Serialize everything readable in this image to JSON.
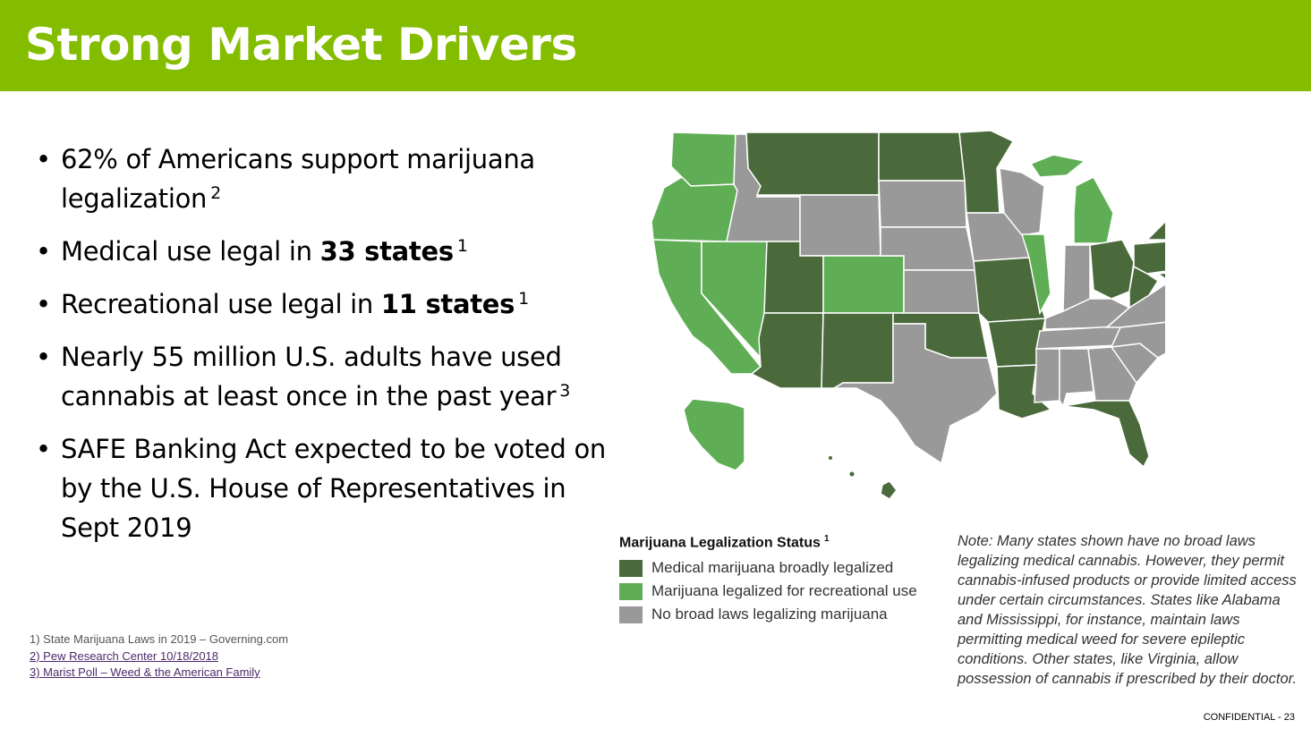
{
  "title": "Strong Market Drivers",
  "bullets": [
    {
      "text": "62% of Americans support marijuana legalization",
      "bold": "",
      "after": "",
      "sup": "2"
    },
    {
      "text": "Medical use legal in ",
      "bold": "33 states",
      "after": "",
      "sup": "1"
    },
    {
      "text": "Recreational use legal in ",
      "bold": "11 states",
      "after": "",
      "sup": "1"
    },
    {
      "text": "Nearly 55 million U.S. adults have used cannabis at least once in the past year",
      "bold": "",
      "after": "",
      "sup": "3"
    },
    {
      "text": "SAFE Banking Act expected to be voted on by the U.S. House of Representatives in Sept 2019",
      "bold": "",
      "after": "",
      "sup": ""
    }
  ],
  "references": [
    {
      "text": "1) State Marijuana Laws in 2019 – Governing.com",
      "link": false
    },
    {
      "text": "2) Pew Research Center 10/18/2018",
      "link": true
    },
    {
      "text": "3) Marist Poll – Weed & the American Family",
      "link": true
    }
  ],
  "legend": {
    "title": "Marijuana Legalization Status",
    "title_sup": "1",
    "items": [
      {
        "label": "Medical marijuana broadly legalized",
        "color": "#4a6a3c"
      },
      {
        "label": "Marijuana legalized for recreational use",
        "color": "#5fae55"
      },
      {
        "label": "No broad laws legalizing marijuana",
        "color": "#999999"
      }
    ]
  },
  "note": "Note: Many states shown have no broad laws legalizing medical cannabis. However, they permit cannabis-infused products or provide limited access under certain circumstances. States like Alabama and Mississippi, for instance, maintain laws permitting medical weed for severe epileptic conditions. Other states, like Virginia, allow possession of cannabis if prescribed by their doctor.",
  "footer": "CONFIDENTIAL -  23",
  "colors": {
    "header": "#84bd00",
    "medical": "#4a6a3c",
    "recreational": "#5fae55",
    "none": "#999999"
  }
}
